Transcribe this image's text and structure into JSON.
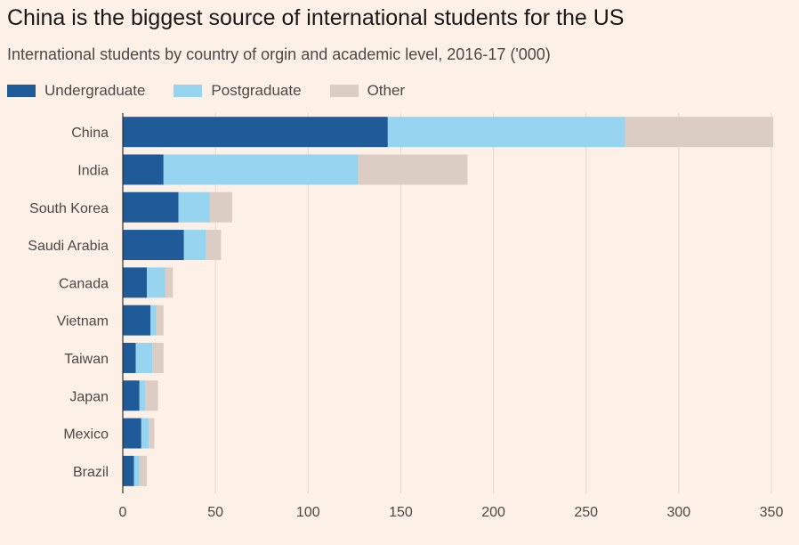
{
  "chart_data": {
    "type": "bar",
    "orientation": "horizontal",
    "stacked": true,
    "title": "China is the biggest source of international students for the US",
    "subtitle": "International students by country of orgin and academic level, 2016-17 ('000)",
    "categories": [
      "China",
      "India",
      "South Korea",
      "Saudi Arabia",
      "Canada",
      "Vietnam",
      "Taiwan",
      "Japan",
      "Mexico",
      "Brazil"
    ],
    "series": [
      {
        "name": "Undergraduate",
        "color": "#1f5b99",
        "values": [
          143,
          22,
          30,
          33,
          13,
          15,
          7,
          9,
          10,
          6
        ]
      },
      {
        "name": "Postgraduate",
        "color": "#96d4f0",
        "values": [
          128,
          105,
          17,
          12,
          10,
          3,
          9,
          3,
          4,
          3
        ]
      },
      {
        "name": "Other",
        "color": "#dccdc4",
        "values": [
          80,
          59,
          12,
          8,
          4,
          4,
          6,
          7,
          3,
          4
        ]
      }
    ],
    "xlim": [
      0,
      350
    ],
    "xticks": [
      0,
      50,
      100,
      150,
      200,
      250,
      300,
      350
    ],
    "grid": true,
    "legend": "top-left"
  }
}
